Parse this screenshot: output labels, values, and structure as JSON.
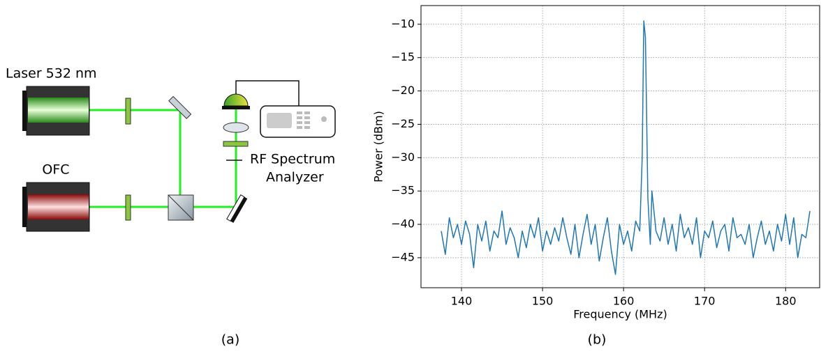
{
  "diagram": {
    "laser_label": "Laser 532 nm",
    "ofc_label": "OFC",
    "analyzer_label": [
      "RF Spectrum",
      "Analyzer"
    ],
    "caption": "(a)"
  },
  "chart_data": {
    "type": "line",
    "caption": "(b)",
    "xlabel": "Frequency (MHz)",
    "ylabel": "Power (dBm)",
    "xlim": [
      135.0,
      184.2
    ],
    "ylim": [
      -49.5,
      -7.2
    ],
    "xticks": [
      140,
      150,
      160,
      170,
      180
    ],
    "yticks": [
      {
        "value": -45,
        "label": "−45"
      },
      {
        "value": -40,
        "label": "−40"
      },
      {
        "value": -35,
        "label": "−35"
      },
      {
        "value": -30,
        "label": "−30"
      },
      {
        "value": -25,
        "label": "−25"
      },
      {
        "value": -20,
        "label": "−20"
      },
      {
        "value": -15,
        "label": "−15"
      },
      {
        "value": -10,
        "label": "−10"
      }
    ],
    "grid": true,
    "series": [
      {
        "color": "#1f77b4",
        "x": [
          137.5,
          138,
          138.5,
          139,
          139.5,
          140,
          140.5,
          141,
          141.5,
          142,
          142.5,
          143,
          143.5,
          144,
          144.5,
          145,
          145.5,
          146,
          146.5,
          147,
          147.5,
          148,
          148.5,
          149,
          149.5,
          150,
          150.5,
          151,
          151.5,
          152,
          152.5,
          153,
          153.5,
          154,
          154.5,
          155,
          155.5,
          156,
          156.5,
          157,
          157.5,
          158,
          158.5,
          159,
          159.5,
          160,
          160.5,
          161,
          161.5,
          162,
          162.3,
          162.5,
          162.7,
          163,
          163.3,
          163.5,
          164,
          164.5,
          165,
          165.5,
          166,
          166.5,
          167,
          167.5,
          168,
          168.5,
          169,
          169.5,
          170,
          170.5,
          171,
          171.5,
          172,
          172.5,
          173,
          173.5,
          174,
          174.5,
          175,
          175.5,
          176,
          176.5,
          177,
          177.5,
          178,
          178.5,
          179,
          179.5,
          180,
          180.5,
          181,
          181.5,
          182,
          182.5,
          183
        ],
        "values": [
          -41,
          -44.5,
          -39,
          -42,
          -40,
          -43,
          -39.5,
          -41.5,
          -46.5,
          -40,
          -42.5,
          -39.5,
          -44,
          -41,
          -42,
          -38,
          -43,
          -40.5,
          -42,
          -45,
          -41,
          -43.5,
          -40,
          -42,
          -39,
          -44,
          -41,
          -43,
          -40.5,
          -42.5,
          -39,
          -42,
          -44.5,
          -40,
          -45,
          -41.5,
          -38.5,
          -43,
          -40,
          -45.5,
          -42,
          -39,
          -44,
          -47.5,
          -40,
          -43,
          -41,
          -44,
          -39.5,
          -41,
          -30,
          -9.5,
          -12,
          -36,
          -43,
          -35,
          -41,
          -42.5,
          -39,
          -43,
          -40,
          -44,
          -38.5,
          -42,
          -40.5,
          -43,
          -39,
          -45,
          -41,
          -42,
          -39.5,
          -43.5,
          -41,
          -40,
          -44,
          -39,
          -42,
          -41.5,
          -43,
          -40,
          -45,
          -42,
          -39.5,
          -43,
          -41,
          -44,
          -40,
          -42.5,
          -38.5,
          -43,
          -39,
          -45,
          -41.5,
          -42,
          -38
        ]
      }
    ]
  }
}
